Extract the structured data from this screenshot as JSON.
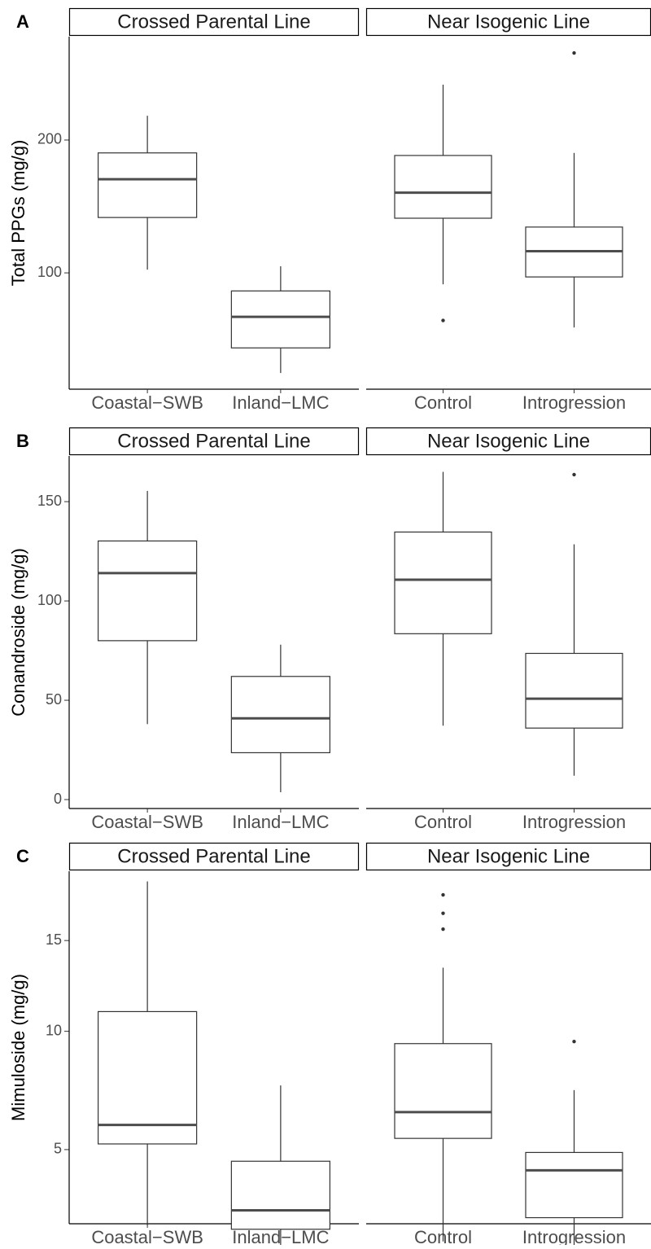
{
  "chart_data": [
    {
      "type": "box",
      "panel_label": "A",
      "ylabel": "Total PPGs (mg/g)",
      "yscale": "log",
      "ylim": [
        54.5,
        343
      ],
      "yticks": [
        100,
        200
      ],
      "facets": [
        {
          "title": "Crossed Parental Line",
          "categories": [
            "Coastal−SWB",
            "Inland−LMC"
          ],
          "boxes": [
            {
              "min": 101.7,
              "q1": 133.5,
              "median": 163,
              "q3": 187,
              "max": 227
            },
            {
              "min": 59.3,
              "q1": 67.6,
              "median": 79.5,
              "q3": 91,
              "max": 103.5
            }
          ]
        },
        {
          "title": "Near Isogenic Line",
          "categories": [
            "Control",
            "Introgression"
          ],
          "boxes": [
            {
              "min": 94.2,
              "q1": 133,
              "median": 152,
              "q3": 184.5,
              "max": 267,
              "outliers": [
                78
              ]
            },
            {
              "min": 75.2,
              "q1": 97.9,
              "median": 112,
              "q3": 127,
              "max": 187,
              "outliers": [
                315
              ]
            }
          ]
        }
      ]
    },
    {
      "type": "box",
      "panel_label": "B",
      "ylabel": "Conandroside (mg/g)",
      "yscale": "linear",
      "ylim": [
        -4.5,
        173
      ],
      "yticks": [
        0,
        50,
        100,
        150
      ],
      "facets": [
        {
          "title": "Crossed Parental Line",
          "categories": [
            "Coastal−SWB",
            "Inland−LMC"
          ],
          "boxes": [
            {
              "min": 38,
              "q1": 80,
              "median": 114,
              "q3": 130.2,
              "max": 155.4
            },
            {
              "min": 3.7,
              "q1": 23.6,
              "median": 40.9,
              "q3": 62,
              "max": 78
            }
          ]
        },
        {
          "title": "Near Isogenic Line",
          "categories": [
            "Control",
            "Introgression"
          ],
          "boxes": [
            {
              "min": 37.2,
              "q1": 83.5,
              "median": 110.7,
              "q3": 134.7,
              "max": 165
            },
            {
              "min": 12,
              "q1": 36,
              "median": 50.8,
              "q3": 73.6,
              "max": 128.5,
              "outliers": [
                163.6
              ]
            }
          ]
        }
      ]
    },
    {
      "type": "box",
      "panel_label": "C",
      "ylabel": "Mimuloside (mg/g)",
      "yscale": "sqrt",
      "ylim": [
        2.74,
        19.5
      ],
      "yticks": [
        5,
        10,
        15
      ],
      "facets": [
        {
          "title": "Crossed Parental Line",
          "categories": [
            "Coastal−SWB",
            "Inland−LMC"
          ],
          "boxes": [
            {
              "min": 2.7,
              "q1": 5.2,
              "median": 5.9,
              "q3": 11,
              "max": 18.8
            },
            {
              "min": 1.1,
              "q1": 2.6,
              "median": 3.1,
              "q3": 4.6,
              "max": 7.5
            }
          ]
        },
        {
          "title": "Near Isogenic Line",
          "categories": [
            "Control",
            "Introgression"
          ],
          "boxes": [
            {
              "min": 2.3,
              "q1": 5.4,
              "median": 6.4,
              "q3": 9.4,
              "max": 13.4,
              "outliers": [
                15.7,
                16.7,
                17.9
              ]
            },
            {
              "min": 1.6,
              "q1": 2.9,
              "median": 4.3,
              "q3": 4.9,
              "max": 7.3,
              "outliers": [
                9.5
              ]
            }
          ]
        }
      ]
    }
  ]
}
